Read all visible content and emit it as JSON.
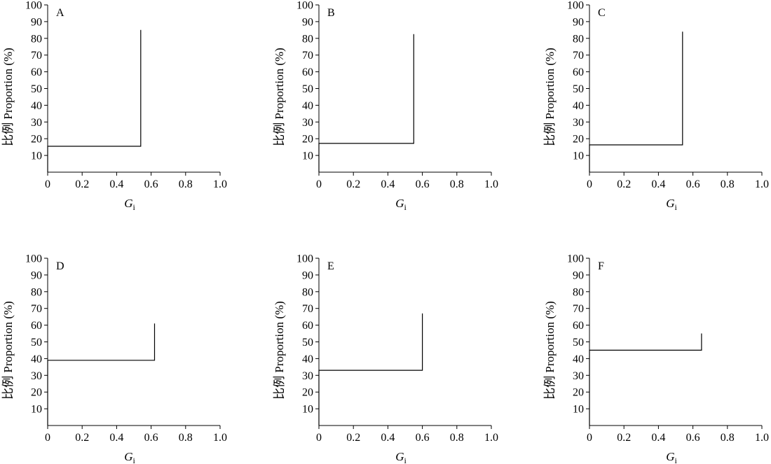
{
  "chart_data": [
    {
      "type": "line",
      "panel_label": "A",
      "xlabel": "G",
      "xlabel_sub": "i",
      "ylabel": "比例 Proportion (%)",
      "xlim": [
        0,
        1.0
      ],
      "ylim": [
        0,
        100
      ],
      "xticks": [
        "0",
        "0.2",
        "0.4",
        "0.6",
        "0.8",
        "1.0"
      ],
      "yticks": [
        "10",
        "20",
        "30",
        "40",
        "50",
        "60",
        "70",
        "80",
        "90",
        "100"
      ],
      "series": [
        {
          "x": [
            0,
            0,
            0.54,
            0.54
          ],
          "y": [
            0,
            15.5,
            15.5,
            85
          ]
        }
      ]
    },
    {
      "type": "line",
      "panel_label": "B",
      "xlabel": "G",
      "xlabel_sub": "i",
      "ylabel": "比例 Proportion (%)",
      "xlim": [
        0,
        1.0
      ],
      "ylim": [
        0,
        100
      ],
      "xticks": [
        "0",
        "0.2",
        "0.4",
        "0.6",
        "0.8",
        "1.0"
      ],
      "yticks": [
        "10",
        "20",
        "30",
        "40",
        "50",
        "60",
        "70",
        "80",
        "90",
        "100"
      ],
      "series": [
        {
          "x": [
            0,
            0,
            0.55,
            0.55
          ],
          "y": [
            0,
            17.2,
            17.2,
            82.5
          ]
        }
      ]
    },
    {
      "type": "line",
      "panel_label": "C",
      "xlabel": "G",
      "xlabel_sub": "i",
      "ylabel": "比例 Proportion (%)",
      "xlim": [
        0,
        1.0
      ],
      "ylim": [
        0,
        100
      ],
      "xticks": [
        "0",
        "0.2",
        "0.4",
        "0.6",
        "0.8",
        "1.0"
      ],
      "yticks": [
        "10",
        "20",
        "30",
        "40",
        "50",
        "60",
        "70",
        "80",
        "90",
        "100"
      ],
      "series": [
        {
          "x": [
            0,
            0,
            0.54,
            0.54
          ],
          "y": [
            0,
            16.3,
            16.3,
            84
          ]
        }
      ]
    },
    {
      "type": "line",
      "panel_label": "D",
      "xlabel": "G",
      "xlabel_sub": "i",
      "ylabel": "比例 Proportion (%)",
      "xlim": [
        0,
        1.0
      ],
      "ylim": [
        0,
        100
      ],
      "xticks": [
        "0",
        "0.2",
        "0.4",
        "0.6",
        "0.8",
        "1.0"
      ],
      "yticks": [
        "10",
        "20",
        "30",
        "40",
        "50",
        "60",
        "70",
        "80",
        "90",
        "100"
      ],
      "series": [
        {
          "x": [
            0,
            0,
            0.62,
            0.62
          ],
          "y": [
            0,
            39,
            39,
            61
          ]
        }
      ]
    },
    {
      "type": "line",
      "panel_label": "E",
      "xlabel": "G",
      "xlabel_sub": "i",
      "ylabel": "比例 Proportion (%)",
      "xlim": [
        0,
        1.0
      ],
      "ylim": [
        0,
        100
      ],
      "xticks": [
        "0",
        "0.2",
        "0.4",
        "0.6",
        "0.8",
        "1.0"
      ],
      "yticks": [
        "10",
        "20",
        "30",
        "40",
        "50",
        "60",
        "70",
        "80",
        "90",
        "100"
      ],
      "series": [
        {
          "x": [
            0,
            0,
            0.6,
            0.6
          ],
          "y": [
            0,
            33,
            33,
            67
          ]
        }
      ]
    },
    {
      "type": "line",
      "panel_label": "F",
      "xlabel": "G",
      "xlabel_sub": "i",
      "ylabel": "比例 Proportion (%)",
      "xlim": [
        0,
        1.0
      ],
      "ylim": [
        0,
        100
      ],
      "xticks": [
        "0",
        "0.2",
        "0.4",
        "0.6",
        "0.8",
        "1.0"
      ],
      "yticks": [
        "10",
        "20",
        "30",
        "40",
        "50",
        "60",
        "70",
        "80",
        "90",
        "100"
      ],
      "series": [
        {
          "x": [
            0,
            0,
            0.65,
            0.65
          ],
          "y": [
            0,
            45,
            45,
            55
          ]
        }
      ]
    }
  ]
}
